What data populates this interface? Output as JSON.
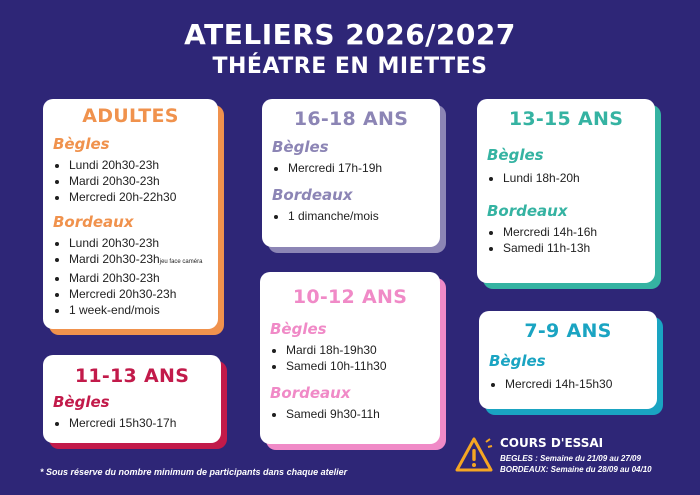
{
  "header": {
    "title": "ATELIERS 2026/2027",
    "subtitle": "THÉATRE EN MIETTES"
  },
  "colors": {
    "background": "#2e2677",
    "orange": "#f0924d",
    "purple": "#8c85b5",
    "teal": "#35b3a2",
    "pink": "#f08ac7",
    "red": "#c21a4a",
    "blue": "#1aa4c2"
  },
  "adultes": {
    "title": "ADULTES",
    "loc1": "Bègles",
    "loc1_items": [
      "Lundi 20h30-23h",
      "Mardi 20h30-23h",
      "Mercredi 20h-22h30"
    ],
    "loc2": "Bordeaux",
    "loc2_items": [
      "Lundi 20h30-23h",
      "Mardi 20h30-23h",
      "Mardi 20h30-23h",
      "Mercredi 20h30-23h",
      "1 week-end/mois"
    ],
    "loc2_note": "jeu face caméra"
  },
  "age16_18": {
    "title": "16-18 ANS",
    "loc1": "Bègles",
    "loc1_items": [
      "Mercredi 17h-19h"
    ],
    "loc2": "Bordeaux",
    "loc2_items": [
      "1 dimanche/mois"
    ]
  },
  "age13_15": {
    "title": "13-15 ANS",
    "loc1": "Bègles",
    "loc1_items": [
      "Lundi 18h-20h"
    ],
    "loc2": "Bordeaux",
    "loc2_items": [
      "Mercredi 14h-16h",
      "Samedi 11h-13h"
    ]
  },
  "age10_12": {
    "title": "10-12 ANS",
    "loc1": "Bègles",
    "loc1_items": [
      "Mardi 18h-19h30",
      "Samedi 10h-11h30"
    ],
    "loc2": "Bordeaux",
    "loc2_items": [
      "Samedi 9h30-11h"
    ]
  },
  "age11_13": {
    "title": "11-13 ANS",
    "loc1": "Bègles",
    "loc1_items": [
      "Mercredi 15h30-17h"
    ]
  },
  "age7_9": {
    "title": "7-9 ANS",
    "loc1": "Bègles",
    "loc1_items": [
      "Mercredi 14h-15h30"
    ]
  },
  "footnote": "* Sous réserve du nombre minimum de participants dans chaque atelier",
  "trial": {
    "title": "COURS D'ESSAI",
    "line1": "BEGLES :  Semaine du 21/09 au 27/09",
    "line2": "BORDEAUX:  Semaine du 28/09 au 04/10",
    "icon": "warning-icon"
  }
}
